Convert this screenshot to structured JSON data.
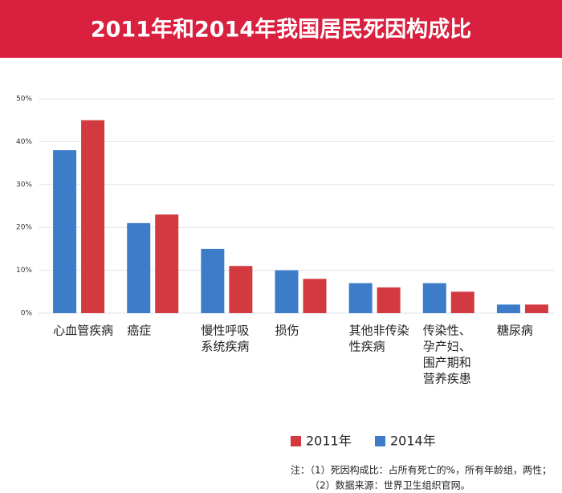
{
  "chart_data": {
    "type": "bar",
    "title": "2011年和2014年我国居民死因构成比",
    "categories": [
      [
        "心血管疾病"
      ],
      [
        "癌症"
      ],
      [
        "慢性呼吸",
        "系统疾病"
      ],
      [
        "损伤"
      ],
      [
        "其他非传染",
        "性疾病"
      ],
      [
        "传染性、",
        "孕产妇、",
        "围产期和",
        "营养疾患"
      ],
      [
        "糖尿病"
      ]
    ],
    "series": [
      {
        "name": "2011年",
        "color": "#d23a3f",
        "values": [
          45,
          23,
          11,
          8,
          6,
          5,
          2
        ]
      },
      {
        "name": "2014年",
        "color": "#3d7cc9",
        "values": [
          38,
          21,
          15,
          10,
          7,
          7,
          2
        ]
      }
    ],
    "ylim": [
      0,
      50
    ],
    "yticks": [
      {
        "value": 0,
        "label": "0%"
      },
      {
        "value": 10,
        "label": "10%"
      },
      {
        "value": 20,
        "label": "20%"
      },
      {
        "value": 30,
        "label": "30%"
      },
      {
        "value": 40,
        "label": "40%"
      },
      {
        "value": 50,
        "label": "50%"
      }
    ],
    "grid": true,
    "notes": [
      "注：（1）死因构成比：占所有死亡的%，所有年龄组，两性；",
      "（2）数据来源：世界卫生组织官网。"
    ]
  }
}
